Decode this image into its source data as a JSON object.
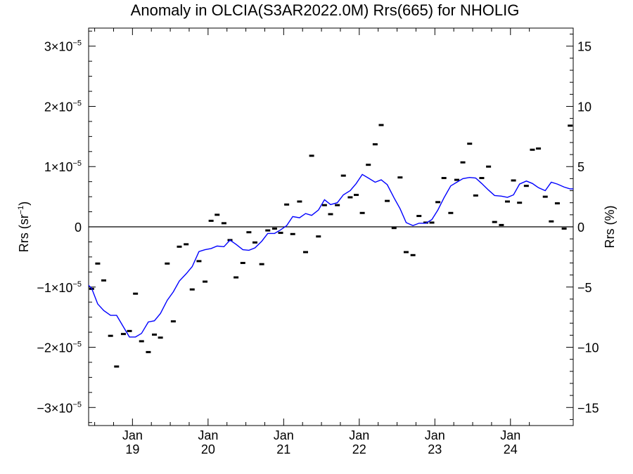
{
  "chart_data": {
    "type": "scatter",
    "title": "Anomaly in OLCIA(S3AR2022.0M) Rrs(665) for NHOLIG",
    "ylabel_left": "Rrs (sr",
    "ylabel_left_sup": "−1",
    "ylabel_left_close": ")",
    "ylabel_right": "Rrs (%)",
    "ylim": [
      -3.3e-05,
      3.3e-05
    ],
    "y2lim": [
      -16.5,
      16.5
    ],
    "xlim": [
      2018.42,
      2024.83
    ],
    "left_ticks": [
      {
        "value": 3e-05,
        "mant": "3×10",
        "exp": "−5"
      },
      {
        "value": 2e-05,
        "mant": "2×10",
        "exp": "−5"
      },
      {
        "value": 1e-05,
        "mant": "1×10",
        "exp": "−5"
      },
      {
        "value": 0,
        "mant": "0",
        "exp": ""
      },
      {
        "value": -1e-05,
        "mant": "−1×10",
        "exp": "−5"
      },
      {
        "value": -2e-05,
        "mant": "−2×10",
        "exp": "−5"
      },
      {
        "value": -3e-05,
        "mant": "−3×10",
        "exp": "−5"
      }
    ],
    "right_ticks": [
      {
        "value": 15,
        "label": "15"
      },
      {
        "value": 10,
        "label": "10"
      },
      {
        "value": 5,
        "label": "5"
      },
      {
        "value": 0,
        "label": "0"
      },
      {
        "value": -5,
        "label": "−5"
      },
      {
        "value": -10,
        "label": "−10"
      },
      {
        "value": -15,
        "label": "−15"
      }
    ],
    "x_ticks": [
      {
        "value": 2019.0,
        "month": "Jan",
        "year": "19"
      },
      {
        "value": 2020.0,
        "month": "Jan",
        "year": "20"
      },
      {
        "value": 2021.0,
        "month": "Jan",
        "year": "21"
      },
      {
        "value": 2022.0,
        "month": "Jan",
        "year": "22"
      },
      {
        "value": 2023.0,
        "month": "Jan",
        "year": "23"
      },
      {
        "value": 2024.0,
        "month": "Jan",
        "year": "24"
      }
    ],
    "zero_line": true,
    "grid": false,
    "colors": {
      "points": "#000000",
      "smoothed_line": "#0000ff",
      "axes": "#000000"
    },
    "series": [
      {
        "kind": "monthly anomaly markers",
        "x": [
          2018.46,
          2018.54,
          2018.62,
          2018.71,
          2018.79,
          2018.88,
          2018.96,
          2019.04,
          2019.12,
          2019.21,
          2019.29,
          2019.37,
          2019.46,
          2019.54,
          2019.62,
          2019.71,
          2019.79,
          2019.88,
          2019.96,
          2020.04,
          2020.12,
          2020.21,
          2020.29,
          2020.37,
          2020.46,
          2020.54,
          2020.62,
          2020.71,
          2020.79,
          2020.88,
          2020.96,
          2021.04,
          2021.12,
          2021.21,
          2021.29,
          2021.37,
          2021.46,
          2021.54,
          2021.62,
          2021.71,
          2021.79,
          2021.88,
          2021.96,
          2022.04,
          2022.12,
          2022.21,
          2022.29,
          2022.37,
          2022.46,
          2022.54,
          2022.62,
          2022.71,
          2022.79,
          2022.88,
          2022.96,
          2023.04,
          2023.12,
          2023.21,
          2023.29,
          2023.37,
          2023.46,
          2023.54,
          2023.62,
          2023.71,
          2023.79,
          2023.88,
          2023.96,
          2024.04,
          2024.12,
          2024.21,
          2024.29,
          2024.37,
          2024.46,
          2024.54,
          2024.62,
          2024.71,
          2024.79
        ],
        "y": [
          -1.03e-05,
          -6.1e-06,
          -8.9e-06,
          -1.81e-05,
          -2.32e-05,
          -1.78e-05,
          -1.73e-05,
          -1.11e-05,
          -1.9e-05,
          -2.08e-05,
          -1.79e-05,
          -1.84e-05,
          -6.1e-06,
          -1.57e-05,
          -3.3e-06,
          -2.9e-06,
          -1.04e-05,
          -5.7e-06,
          -9.1e-06,
          1e-06,
          2e-06,
          6e-07,
          -2.2e-06,
          -8.4e-06,
          -6e-06,
          -9e-07,
          -2.6e-06,
          -6.2e-06,
          -6e-07,
          -3e-07,
          -1e-06,
          3.7e-06,
          -1.2e-06,
          4.2e-06,
          -4.2e-06,
          1.18e-05,
          -1.6e-06,
          3.6e-06,
          2.1e-06,
          3.6e-06,
          8.5e-06,
          4.9e-06,
          5.3e-06,
          2.3e-06,
          1.03e-05,
          1.37e-05,
          1.69e-05,
          4.3e-06,
          -2e-07,
          8.2e-06,
          -4.2e-06,
          -4.7e-06,
          1.8e-06,
          7e-07,
          7e-07,
          4.1e-06,
          8.1e-06,
          2.3e-06,
          7.8e-06,
          1.07e-05,
          1.38e-05,
          5.2e-06,
          8.1e-06,
          1e-05,
          8e-07,
          3e-07,
          4.2e-06,
          7.7e-06,
          4e-06,
          6.8e-06,
          1.28e-05,
          1.3e-05,
          5e-06,
          9e-07,
          3.9e-06,
          -3e-07,
          1.68e-05
        ]
      },
      {
        "kind": "smoothed anomaly line",
        "x": [
          2018.42,
          2018.46,
          2018.54,
          2018.62,
          2018.71,
          2018.79,
          2018.88,
          2018.96,
          2019.04,
          2019.12,
          2019.21,
          2019.29,
          2019.37,
          2019.46,
          2019.54,
          2019.62,
          2019.71,
          2019.79,
          2019.88,
          2019.96,
          2020.04,
          2020.12,
          2020.21,
          2020.29,
          2020.37,
          2020.46,
          2020.54,
          2020.62,
          2020.71,
          2020.79,
          2020.88,
          2020.96,
          2021.04,
          2021.12,
          2021.21,
          2021.29,
          2021.37,
          2021.46,
          2021.54,
          2021.62,
          2021.71,
          2021.79,
          2021.88,
          2021.96,
          2022.04,
          2022.12,
          2022.21,
          2022.29,
          2022.37,
          2022.46,
          2022.54,
          2022.62,
          2022.71,
          2022.79,
          2022.88,
          2022.96,
          2023.04,
          2023.12,
          2023.21,
          2023.29,
          2023.37,
          2023.46,
          2023.54,
          2023.62,
          2023.71,
          2023.79,
          2023.88,
          2023.96,
          2024.04,
          2024.12,
          2024.21,
          2024.29,
          2024.37,
          2024.46,
          2024.54,
          2024.62,
          2024.71,
          2024.79,
          2024.83
        ],
        "y": [
          -9.7e-06,
          -1.02e-05,
          -1.28e-05,
          -1.39e-05,
          -1.47e-05,
          -1.47e-05,
          -1.66e-05,
          -1.83e-05,
          -1.83e-05,
          -1.77e-05,
          -1.58e-05,
          -1.56e-05,
          -1.44e-05,
          -1.22e-05,
          -1.08e-05,
          -9e-06,
          -7.8e-06,
          -6.6e-06,
          -4.1e-06,
          -3.8e-06,
          -3.6e-06,
          -3.2e-06,
          -3.3e-06,
          -2.2e-06,
          -2.9e-06,
          -3.8e-06,
          -3.9e-06,
          -3.5e-06,
          -2.4e-06,
          -1.1e-06,
          -1.1e-06,
          -5e-07,
          2e-07,
          1.7e-06,
          1.5e-06,
          2.2e-06,
          1.9e-06,
          2.8e-06,
          4.5e-06,
          3.7e-06,
          4e-06,
          5.3e-06,
          6e-06,
          7.2e-06,
          8.7e-06,
          8.1e-06,
          7.4e-06,
          7.8e-06,
          7e-06,
          4.8e-06,
          3e-06,
          7e-07,
          2e-07,
          6e-07,
          6e-07,
          1.2e-06,
          2.8e-06,
          4.8e-06,
          6.8e-06,
          7.4e-06,
          8e-06,
          8.2e-06,
          8.1e-06,
          7.2e-06,
          6.1e-06,
          5.2e-06,
          5.1e-06,
          4.9e-06,
          5.3e-06,
          7.1e-06,
          7.6e-06,
          7.2e-06,
          6.5e-06,
          6e-06,
          7.4e-06,
          7.1e-06,
          6.6e-06,
          6.3e-06,
          6.3e-06
        ]
      }
    ]
  }
}
